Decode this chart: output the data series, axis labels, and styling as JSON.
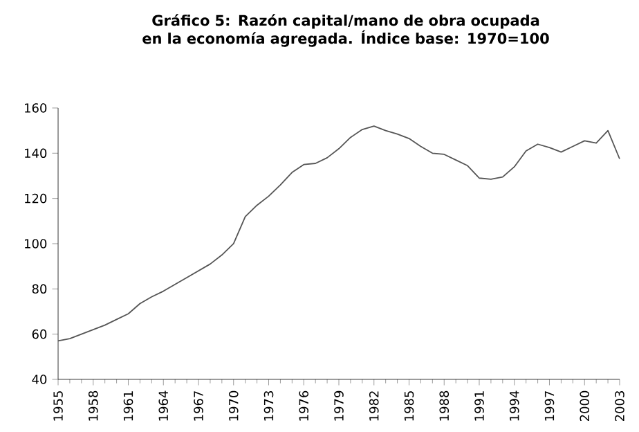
{
  "chart_data": {
    "type": "line",
    "title": "Gráfico 5: Razón capital/mano de obra ocupada en la economía agregada. Índice base: 1970=100",
    "x": [
      1955,
      1956,
      1957,
      1958,
      1959,
      1960,
      1961,
      1962,
      1963,
      1964,
      1965,
      1966,
      1967,
      1968,
      1969,
      1970,
      1971,
      1972,
      1973,
      1974,
      1975,
      1976,
      1977,
      1978,
      1979,
      1980,
      1981,
      1982,
      1983,
      1984,
      1985,
      1986,
      1987,
      1988,
      1989,
      1990,
      1991,
      1992,
      1993,
      1994,
      1995,
      1996,
      1997,
      1998,
      1999,
      2000,
      2001,
      2002,
      2003
    ],
    "series": [
      {
        "color": "#555555",
        "values": [
          57,
          58,
          60,
          62,
          64,
          66.5,
          69,
          73.5,
          76.5,
          79,
          82,
          85,
          88,
          91,
          95,
          100,
          112,
          117,
          121,
          126,
          131.5,
          135,
          135.5,
          138,
          142,
          147,
          150.5,
          152,
          150,
          148.5,
          146.5,
          143,
          140,
          139.5,
          137,
          134.5,
          129,
          128.5,
          129.5,
          134,
          141,
          144,
          142.5,
          140.5,
          143,
          145.5,
          144.5,
          150,
          137.5
        ]
      }
    ],
    "xlim": [
      1955,
      2003
    ],
    "xticks": [
      1955,
      1958,
      1961,
      1964,
      1967,
      1970,
      1973,
      1976,
      1979,
      1982,
      1985,
      1988,
      1991,
      1994,
      1997,
      2000,
      2003
    ],
    "ylim": [
      40,
      160
    ],
    "yticks": [
      40,
      60,
      80,
      100,
      120,
      140,
      160
    ],
    "marker": "none",
    "line_style": "solid"
  }
}
